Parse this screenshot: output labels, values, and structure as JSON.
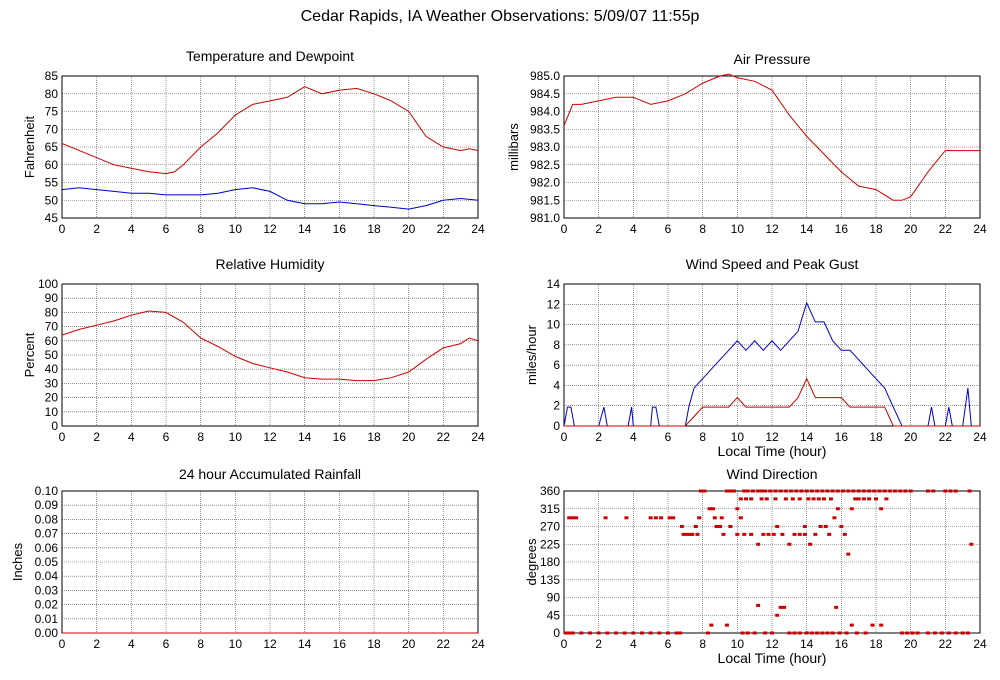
{
  "page": {
    "title": "Cedar Rapids, IA Weather Observations: 5/09/07 11:55p"
  },
  "colors": {
    "red": "#cc0000",
    "blue": "#0000cc",
    "grid": "#555555"
  },
  "chart_data": [
    {
      "id": "temp",
      "type": "line",
      "title": "Temperature and Dewpoint",
      "ylabel": "Fahrenheit",
      "xlabel": "",
      "xlim": [
        0,
        24
      ],
      "ylim": [
        45,
        85
      ],
      "xticks": [
        "0",
        "2",
        "4",
        "6",
        "8",
        "10",
        "12",
        "14",
        "16",
        "18",
        "20",
        "22",
        "24"
      ],
      "yticks": [
        "45",
        "50",
        "55",
        "60",
        "65",
        "70",
        "75",
        "80",
        "85"
      ],
      "series": [
        {
          "color": "#cc0000",
          "x": [
            0,
            1,
            2,
            3,
            4,
            5,
            6,
            6.5,
            7,
            8,
            9,
            10,
            11,
            12,
            13,
            14,
            15,
            16,
            17,
            18,
            19,
            20,
            21,
            22,
            23,
            23.5,
            24
          ],
          "y": [
            66,
            64,
            62,
            60,
            59,
            58,
            57.5,
            58,
            60,
            65,
            69,
            74,
            77,
            78,
            79,
            82,
            80,
            81,
            81.5,
            80,
            78,
            75,
            68,
            65,
            64,
            64.5,
            64
          ]
        },
        {
          "color": "#0000cc",
          "x": [
            0,
            1,
            2,
            3,
            4,
            5,
            6,
            7,
            8,
            9,
            10,
            11,
            12,
            13,
            14,
            15,
            16,
            17,
            18,
            19,
            20,
            21,
            22,
            23,
            24
          ],
          "y": [
            53,
            53.5,
            53,
            52.5,
            52,
            52,
            51.5,
            51.5,
            51.5,
            52,
            53,
            53.5,
            52.5,
            50,
            49,
            49,
            49.5,
            49,
            48.5,
            48,
            47.5,
            48.5,
            50,
            50.5,
            50
          ]
        }
      ]
    },
    {
      "id": "pressure",
      "type": "line",
      "title": "Air Pressure",
      "ylabel": "millibars",
      "xlabel": "",
      "xlim": [
        0,
        24
      ],
      "ylim": [
        981.0,
        985.0
      ],
      "xticks": [
        "0",
        "2",
        "4",
        "6",
        "8",
        "10",
        "12",
        "14",
        "16",
        "18",
        "20",
        "22",
        "24"
      ],
      "yticks": [
        "981.0",
        "981.5",
        "982.0",
        "982.5",
        "983.0",
        "983.5",
        "984.0",
        "984.5",
        "985.0"
      ],
      "series": [
        {
          "color": "#cc0000",
          "x": [
            0,
            0.5,
            1,
            2,
            3,
            4,
            5,
            6,
            7,
            8,
            9,
            9.5,
            10,
            11,
            12,
            13,
            14,
            15,
            16,
            17,
            18,
            19,
            19.5,
            20,
            21,
            22,
            23,
            24
          ],
          "y": [
            983.6,
            984.2,
            984.2,
            984.3,
            984.4,
            984.4,
            984.2,
            984.3,
            984.5,
            984.8,
            985.0,
            985.05,
            984.95,
            984.85,
            984.6,
            983.9,
            983.3,
            982.8,
            982.3,
            981.9,
            981.8,
            981.5,
            981.5,
            981.6,
            982.3,
            982.9,
            982.9,
            982.9
          ]
        }
      ]
    },
    {
      "id": "humidity",
      "type": "line",
      "title": "Relative Humidity",
      "ylabel": "Percent",
      "xlabel": "",
      "xlim": [
        0,
        24
      ],
      "ylim": [
        0,
        100
      ],
      "xticks": [
        "0",
        "2",
        "4",
        "6",
        "8",
        "10",
        "12",
        "14",
        "16",
        "18",
        "20",
        "22",
        "24"
      ],
      "yticks": [
        "0",
        "10",
        "20",
        "30",
        "40",
        "50",
        "60",
        "70",
        "80",
        "90",
        "100"
      ],
      "series": [
        {
          "color": "#cc0000",
          "x": [
            0,
            1,
            2,
            3,
            4,
            5,
            6,
            7,
            8,
            9,
            10,
            11,
            12,
            13,
            14,
            15,
            16,
            17,
            18,
            19,
            20,
            21,
            22,
            23,
            23.5,
            24
          ],
          "y": [
            64,
            68,
            71,
            74,
            78,
            81,
            80,
            73,
            62,
            56,
            49,
            44,
            41,
            38,
            34,
            33,
            33,
            32,
            32,
            34,
            38,
            47,
            55,
            58,
            62,
            60
          ]
        }
      ]
    },
    {
      "id": "wind",
      "type": "line",
      "title": "Wind Speed and Peak Gust",
      "ylabel": "miles/hour",
      "xlabel": "Local Time (hour)",
      "xlim": [
        0,
        24
      ],
      "ylim": [
        0,
        15
      ],
      "xticks": [
        "0",
        "2",
        "4",
        "6",
        "8",
        "10",
        "12",
        "14",
        "16",
        "18",
        "20",
        "22",
        "24"
      ],
      "yticks": [
        "0",
        "2",
        "4",
        "6",
        "8",
        "10",
        "12",
        "14"
      ],
      "series": [
        {
          "color": "#0000cc",
          "x": [
            0,
            0.2,
            0.4,
            0.6,
            1,
            2,
            2.3,
            2.5,
            3,
            3.7,
            3.9,
            4,
            5,
            5.1,
            5.3,
            5.5,
            6,
            6.5,
            7,
            7.2,
            7.5,
            8,
            8.5,
            9,
            9.5,
            10,
            10.5,
            11,
            11.5,
            12,
            12.5,
            13,
            13.5,
            14,
            14.5,
            15,
            15.5,
            16,
            16.5,
            17,
            17.5,
            18,
            18.5,
            19,
            19.5,
            20,
            21,
            21.2,
            21.4,
            22,
            22.2,
            22.4,
            23,
            23.3,
            23.5,
            24
          ],
          "y": [
            0,
            2,
            2,
            0,
            0,
            0,
            2,
            0,
            0,
            0,
            2,
            0,
            0,
            2,
            2,
            0,
            0,
            0,
            0,
            2,
            4,
            5,
            6,
            7,
            8,
            9,
            8,
            9,
            8,
            9,
            8,
            9,
            10,
            13,
            11,
            11,
            9,
            8,
            8,
            7,
            6,
            5,
            4,
            2,
            0,
            0,
            0,
            2,
            0,
            0,
            2,
            0,
            0,
            4,
            0,
            0
          ]
        },
        {
          "color": "#cc0000",
          "x": [
            0,
            7,
            7.5,
            8,
            8.5,
            9,
            9.5,
            10,
            10.5,
            11,
            11.5,
            12,
            12.5,
            13,
            13.5,
            14,
            14.5,
            15,
            15.5,
            16,
            16.5,
            17,
            17.5,
            18,
            18.5,
            19,
            24
          ],
          "y": [
            0,
            0,
            1,
            2,
            2,
            2,
            2,
            3,
            2,
            2,
            2,
            2,
            2,
            2,
            3,
            5,
            3,
            3,
            3,
            3,
            2,
            2,
            2,
            2,
            2,
            0,
            0
          ]
        }
      ]
    },
    {
      "id": "rain",
      "type": "line",
      "title": "24 hour Accumulated Rainfall",
      "ylabel": "Inches",
      "xlabel": "",
      "xlim": [
        0,
        24
      ],
      "ylim": [
        0,
        0.1
      ],
      "xticks": [
        "0",
        "2",
        "4",
        "6",
        "8",
        "10",
        "12",
        "14",
        "16",
        "18",
        "20",
        "22",
        "24"
      ],
      "yticks": [
        "0.00",
        "0.01",
        "0.02",
        "0.03",
        "0.04",
        "0.05",
        "0.06",
        "0.07",
        "0.08",
        "0.09",
        "0.10"
      ],
      "series": [
        {
          "color": "#cc0000",
          "x": [
            0,
            24
          ],
          "y": [
            0,
            0
          ]
        }
      ]
    },
    {
      "id": "winddir",
      "type": "scatter",
      "title": "Wind Direction",
      "ylabel": "degrees",
      "xlabel": "Local Time (hour)",
      "xlim": [
        0,
        24
      ],
      "ylim": [
        0,
        360
      ],
      "xticks": [
        "0",
        "2",
        "4",
        "6",
        "8",
        "10",
        "12",
        "14",
        "16",
        "18",
        "20",
        "22",
        "24"
      ],
      "yticks": [
        "0",
        "45",
        "90",
        "135",
        "180",
        "225",
        "270",
        "315",
        "360"
      ],
      "points": [
        [
          0.1,
          0
        ],
        [
          0.3,
          0
        ],
        [
          0.5,
          0
        ],
        [
          1,
          0
        ],
        [
          1.5,
          0
        ],
        [
          2,
          0
        ],
        [
          2.5,
          0
        ],
        [
          3,
          0
        ],
        [
          3.5,
          0
        ],
        [
          4,
          0
        ],
        [
          4.5,
          0
        ],
        [
          5,
          0
        ],
        [
          5.5,
          0
        ],
        [
          6,
          0
        ],
        [
          6.5,
          0
        ],
        [
          6.7,
          0
        ],
        [
          0.3,
          292
        ],
        [
          0.5,
          292
        ],
        [
          0.7,
          292
        ],
        [
          2.4,
          292
        ],
        [
          3.6,
          292
        ],
        [
          5,
          292
        ],
        [
          5.3,
          292
        ],
        [
          5.6,
          292
        ],
        [
          6.1,
          292
        ],
        [
          6.3,
          292
        ],
        [
          6.8,
          270
        ],
        [
          6.9,
          250
        ],
        [
          7.1,
          250
        ],
        [
          7.4,
          250
        ],
        [
          7.6,
          270
        ],
        [
          7.8,
          292
        ],
        [
          7.9,
          360
        ],
        [
          8.1,
          360
        ],
        [
          8.4,
          315
        ],
        [
          8.6,
          315
        ],
        [
          8.8,
          270
        ],
        [
          9,
          270
        ],
        [
          9.2,
          250
        ],
        [
          9.4,
          360
        ],
        [
          9.6,
          360
        ],
        [
          9.8,
          360
        ],
        [
          10,
          315
        ],
        [
          10.2,
          292
        ],
        [
          10.4,
          360
        ],
        [
          10.6,
          360
        ],
        [
          10.9,
          360
        ],
        [
          11.2,
          360
        ],
        [
          11.4,
          360
        ],
        [
          11.6,
          360
        ],
        [
          11.9,
          360
        ],
        [
          12.2,
          360
        ],
        [
          12.5,
          360
        ],
        [
          12.8,
          360
        ],
        [
          13.1,
          360
        ],
        [
          13.4,
          360
        ],
        [
          13.7,
          360
        ],
        [
          14,
          360
        ],
        [
          14.3,
          360
        ],
        [
          14.6,
          360
        ],
        [
          14.9,
          360
        ],
        [
          15.2,
          360
        ],
        [
          15.5,
          360
        ],
        [
          15.8,
          360
        ],
        [
          16.1,
          360
        ],
        [
          16.4,
          360
        ],
        [
          16.7,
          360
        ],
        [
          17,
          360
        ],
        [
          17.3,
          360
        ],
        [
          17.6,
          360
        ],
        [
          17.9,
          360
        ],
        [
          18.2,
          360
        ],
        [
          18.5,
          360
        ],
        [
          18.8,
          360
        ],
        [
          19.1,
          360
        ],
        [
          19.4,
          360
        ],
        [
          19.7,
          360
        ],
        [
          20,
          360
        ],
        [
          21,
          360
        ],
        [
          21.3,
          360
        ],
        [
          22,
          360
        ],
        [
          22.3,
          360
        ],
        [
          22.6,
          360
        ],
        [
          23.4,
          360
        ],
        [
          8.3,
          0
        ],
        [
          8.5,
          20
        ],
        [
          9.4,
          20
        ],
        [
          10.3,
          0
        ],
        [
          10.6,
          0
        ],
        [
          11,
          0
        ],
        [
          11.2,
          70
        ],
        [
          11.6,
          0
        ],
        [
          12,
          0
        ],
        [
          12.3,
          45
        ],
        [
          12.5,
          65
        ],
        [
          12.7,
          65
        ],
        [
          13,
          0
        ],
        [
          13.3,
          0
        ],
        [
          13.6,
          0
        ],
        [
          14,
          0
        ],
        [
          14.3,
          0
        ],
        [
          14.6,
          0
        ],
        [
          14.9,
          0
        ],
        [
          15.2,
          0
        ],
        [
          15.5,
          0
        ],
        [
          15.7,
          65
        ],
        [
          15.9,
          0
        ],
        [
          16.3,
          0
        ],
        [
          16.6,
          20
        ],
        [
          16.9,
          0
        ],
        [
          17.4,
          0
        ],
        [
          17.8,
          20
        ],
        [
          18.3,
          20
        ],
        [
          19.5,
          0
        ],
        [
          19.8,
          0
        ],
        [
          20.1,
          0
        ],
        [
          20.4,
          0
        ],
        [
          21,
          0
        ],
        [
          21.4,
          0
        ],
        [
          21.8,
          0
        ],
        [
          22.2,
          0
        ],
        [
          22.6,
          0
        ],
        [
          23,
          0
        ],
        [
          23.3,
          0
        ],
        [
          10,
          250
        ],
        [
          10.4,
          250
        ],
        [
          10.8,
          250
        ],
        [
          11.2,
          225
        ],
        [
          11.5,
          250
        ],
        [
          11.8,
          250
        ],
        [
          12.3,
          270
        ],
        [
          12.6,
          250
        ],
        [
          13,
          225
        ],
        [
          13.3,
          250
        ],
        [
          13.6,
          250
        ],
        [
          13.9,
          250
        ],
        [
          14.2,
          225
        ],
        [
          14.5,
          250
        ],
        [
          14.8,
          270
        ],
        [
          15.1,
          270
        ],
        [
          15.3,
          250
        ],
        [
          15.6,
          292
        ],
        [
          15.8,
          315
        ],
        [
          16,
          270
        ],
        [
          16.2,
          250
        ],
        [
          16.4,
          200
        ],
        [
          16.6,
          315
        ],
        [
          16.8,
          340
        ],
        [
          17,
          340
        ],
        [
          17.3,
          340
        ],
        [
          17.6,
          340
        ],
        [
          18,
          340
        ],
        [
          18.3,
          315
        ],
        [
          18.6,
          340
        ],
        [
          10.2,
          340
        ],
        [
          10.5,
          340
        ],
        [
          10.8,
          340
        ],
        [
          11.4,
          340
        ],
        [
          11.7,
          340
        ],
        [
          12.2,
          340
        ],
        [
          12.8,
          340
        ],
        [
          13.2,
          340
        ],
        [
          13.6,
          340
        ],
        [
          14.1,
          340
        ],
        [
          14.4,
          340
        ],
        [
          14.7,
          340
        ],
        [
          15,
          340
        ],
        [
          15.4,
          340
        ],
        [
          7.3,
          250
        ],
        [
          7.7,
          250
        ],
        [
          8.7,
          292
        ],
        [
          9.1,
          292
        ],
        [
          9.6,
          270
        ],
        [
          12.1,
          250
        ],
        [
          13.9,
          270
        ],
        [
          23.5,
          225
        ]
      ]
    }
  ]
}
